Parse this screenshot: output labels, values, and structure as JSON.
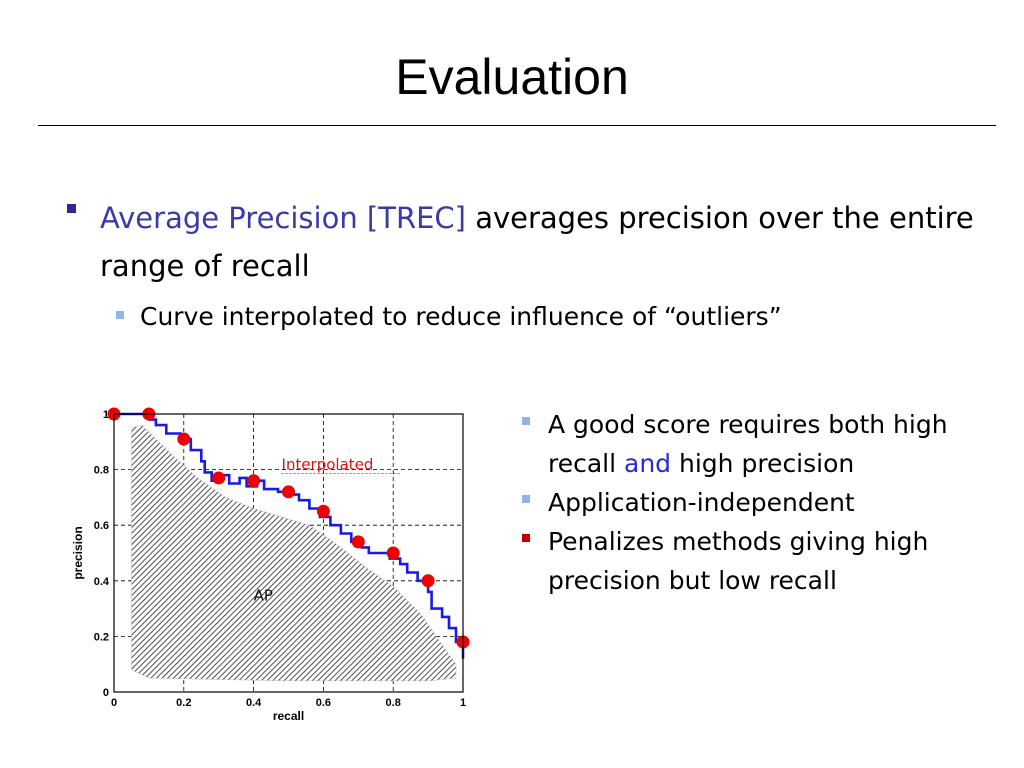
{
  "slide": {
    "title": "Evaluation",
    "bullet1": {
      "highlight": "Average Precision [TREC]",
      "rest": " averages precision over the entire range of recall"
    },
    "bullet2": "Curve interpolated to reduce influence of “outliers”",
    "right_bullets": [
      {
        "parts": [
          "A good score requires both high recall ",
          "and",
          " high precision"
        ]
      },
      {
        "text": "Application-independent"
      },
      {
        "text": "Penalizes methods giving high precision but low recall"
      }
    ]
  },
  "colors": {
    "curve": "#1a1ae6",
    "points": "#ee0000",
    "annotation": "#e01010",
    "bullet_dark": "#2a2a8e",
    "bullet_light": "#8eb4e3",
    "bullet_red": "#c00000"
  },
  "chart_data": {
    "type": "line",
    "xlabel": "recall",
    "ylabel": "precision",
    "xlim": [
      0,
      1
    ],
    "ylim": [
      0,
      1
    ],
    "x_ticks": [
      "0",
      "0.2",
      "0.4",
      "0.6",
      "0.8",
      "1"
    ],
    "y_ticks": [
      "0",
      "0.2",
      "0.4",
      "0.6",
      "0.8",
      "1"
    ],
    "grid": true,
    "annotations": {
      "interpolated": "Interpolated",
      "area": "AP"
    },
    "curve": [
      [
        0,
        1
      ],
      [
        0.1,
        1
      ],
      [
        0.1,
        0.98
      ],
      [
        0.12,
        0.98
      ],
      [
        0.12,
        0.96
      ],
      [
        0.15,
        0.96
      ],
      [
        0.15,
        0.93
      ],
      [
        0.19,
        0.93
      ],
      [
        0.19,
        0.91
      ],
      [
        0.22,
        0.91
      ],
      [
        0.22,
        0.87
      ],
      [
        0.25,
        0.87
      ],
      [
        0.25,
        0.83
      ],
      [
        0.26,
        0.83
      ],
      [
        0.26,
        0.79
      ],
      [
        0.28,
        0.79
      ],
      [
        0.28,
        0.76
      ],
      [
        0.31,
        0.76
      ],
      [
        0.31,
        0.78
      ],
      [
        0.33,
        0.78
      ],
      [
        0.33,
        0.75
      ],
      [
        0.36,
        0.75
      ],
      [
        0.36,
        0.77
      ],
      [
        0.38,
        0.77
      ],
      [
        0.38,
        0.74
      ],
      [
        0.41,
        0.74
      ],
      [
        0.41,
        0.76
      ],
      [
        0.43,
        0.76
      ],
      [
        0.43,
        0.73
      ],
      [
        0.47,
        0.73
      ],
      [
        0.47,
        0.72
      ],
      [
        0.5,
        0.72
      ],
      [
        0.5,
        0.71
      ],
      [
        0.53,
        0.71
      ],
      [
        0.53,
        0.69
      ],
      [
        0.56,
        0.69
      ],
      [
        0.56,
        0.66
      ],
      [
        0.59,
        0.66
      ],
      [
        0.59,
        0.63
      ],
      [
        0.62,
        0.63
      ],
      [
        0.62,
        0.6
      ],
      [
        0.65,
        0.6
      ],
      [
        0.65,
        0.57
      ],
      [
        0.68,
        0.57
      ],
      [
        0.68,
        0.54
      ],
      [
        0.71,
        0.54
      ],
      [
        0.71,
        0.52
      ],
      [
        0.73,
        0.52
      ],
      [
        0.73,
        0.5
      ],
      [
        0.79,
        0.5
      ],
      [
        0.79,
        0.48
      ],
      [
        0.82,
        0.48
      ],
      [
        0.82,
        0.46
      ],
      [
        0.84,
        0.46
      ],
      [
        0.84,
        0.43
      ],
      [
        0.87,
        0.43
      ],
      [
        0.87,
        0.4
      ],
      [
        0.9,
        0.4
      ],
      [
        0.9,
        0.36
      ],
      [
        0.91,
        0.36
      ],
      [
        0.91,
        0.3
      ],
      [
        0.94,
        0.3
      ],
      [
        0.94,
        0.27
      ],
      [
        0.96,
        0.27
      ],
      [
        0.96,
        0.23
      ],
      [
        0.98,
        0.23
      ],
      [
        0.98,
        0.18
      ],
      [
        1,
        0.18
      ],
      [
        1,
        0.12
      ]
    ],
    "interpolated_points": [
      [
        0,
        1
      ],
      [
        0.1,
        1
      ],
      [
        0.2,
        0.91
      ],
      [
        0.3,
        0.77
      ],
      [
        0.4,
        0.76
      ],
      [
        0.5,
        0.72
      ],
      [
        0.6,
        0.65
      ],
      [
        0.7,
        0.54
      ],
      [
        0.8,
        0.5
      ],
      [
        0.9,
        0.4
      ],
      [
        1,
        0.18
      ]
    ],
    "ap_region": [
      [
        0.05,
        0.95
      ],
      [
        0.08,
        0.96
      ],
      [
        0.12,
        0.91
      ],
      [
        0.17,
        0.85
      ],
      [
        0.24,
        0.77
      ],
      [
        0.32,
        0.7
      ],
      [
        0.4,
        0.66
      ],
      [
        0.48,
        0.63
      ],
      [
        0.56,
        0.6
      ],
      [
        0.64,
        0.53
      ],
      [
        0.72,
        0.45
      ],
      [
        0.8,
        0.38
      ],
      [
        0.88,
        0.28
      ],
      [
        0.94,
        0.17
      ],
      [
        0.98,
        0.1
      ],
      [
        0.98,
        0.05
      ],
      [
        0.9,
        0.04
      ],
      [
        0.5,
        0.04
      ],
      [
        0.1,
        0.05
      ],
      [
        0.05,
        0.08
      ]
    ]
  }
}
